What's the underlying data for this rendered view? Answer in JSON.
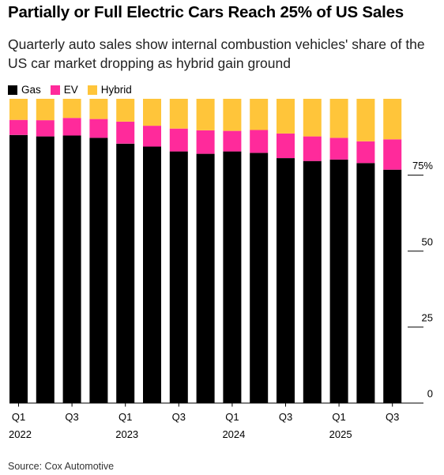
{
  "title": "Partially or Full Electric Cars Reach 25% of US Sales",
  "subtitle": "Quarterly auto sales show internal combustion vehicles' share of the US car market dropping as hybrid gain ground",
  "source": "Source: Cox Automotive",
  "colors": {
    "gas": "#000000",
    "ev": "#ff2a9b",
    "hybrid": "#ffc53a",
    "axis": "#000000"
  },
  "chart_data": {
    "type": "bar",
    "stacked": true,
    "categories": [
      "Q1 2022",
      "Q2 2022",
      "Q3 2022",
      "Q4 2022",
      "Q1 2023",
      "Q2 2023",
      "Q3 2023",
      "Q4 2023",
      "Q1 2024",
      "Q2 2024",
      "Q3 2024",
      "Q4 2024",
      "Q1 2025",
      "Q2 2025",
      "Q3 2025"
    ],
    "x_tick_labels": [
      {
        "index": 0,
        "quarter": "Q1",
        "year": "2022"
      },
      {
        "index": 2,
        "quarter": "Q3",
        "year": ""
      },
      {
        "index": 4,
        "quarter": "Q1",
        "year": "2023"
      },
      {
        "index": 6,
        "quarter": "Q3",
        "year": ""
      },
      {
        "index": 8,
        "quarter": "Q1",
        "year": "2024"
      },
      {
        "index": 10,
        "quarter": "Q3",
        "year": ""
      },
      {
        "index": 12,
        "quarter": "Q1",
        "year": "2025"
      },
      {
        "index": 14,
        "quarter": "Q3",
        "year": ""
      }
    ],
    "series": [
      {
        "name": "Gas",
        "key": "gas",
        "values": [
          92.5,
          92.0,
          92.3,
          91.5,
          89.5,
          88.5,
          86.8,
          86.0,
          86.8,
          86.3,
          84.5,
          83.5,
          84.0,
          82.8,
          80.5
        ]
      },
      {
        "name": "EV",
        "key": "ev",
        "values": [
          5.2,
          5.6,
          6.1,
          6.5,
          7.6,
          7.2,
          7.9,
          8.1,
          7.1,
          7.9,
          8.5,
          8.5,
          7.5,
          7.5,
          10.5
        ]
      },
      {
        "name": "Hybrid",
        "key": "hybrid",
        "values": [
          7.3,
          7.4,
          6.6,
          7.0,
          7.9,
          9.3,
          10.3,
          10.9,
          11.1,
          10.8,
          12.0,
          13.0,
          13.5,
          14.7,
          14.0
        ]
      }
    ],
    "y_ticks": [
      {
        "value": 75,
        "label": "75%"
      },
      {
        "value": 50,
        "label": "50"
      },
      {
        "value": 25,
        "label": "25"
      },
      {
        "value": 0,
        "label": "0"
      }
    ],
    "ylim": [
      0,
      105
    ],
    "xlabel": "",
    "ylabel": "",
    "legend_position": "top-left",
    "grid": false
  }
}
